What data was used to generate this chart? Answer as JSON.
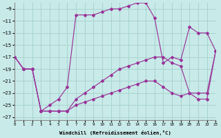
{
  "xlabel": "Windchill (Refroidissement éolien,°C)",
  "background_color": "#c8eae8",
  "grid_color": "#a8d4d0",
  "line_color": "#993399",
  "xlim": [
    0,
    23
  ],
  "ylim": [
    -27.5,
    -8
  ],
  "ytick_vals": [
    -27,
    -25,
    -23,
    -21,
    -19,
    -17,
    -15,
    -13,
    -11,
    -9
  ],
  "xtick_vals": [
    0,
    1,
    2,
    3,
    4,
    5,
    6,
    7,
    8,
    9,
    10,
    11,
    12,
    13,
    14,
    15,
    16,
    17,
    18,
    19,
    20,
    21,
    22,
    23
  ],
  "line1_x": [
    0,
    1,
    2,
    3,
    4,
    5,
    6,
    7,
    8,
    9,
    10,
    11,
    12,
    13,
    14,
    15,
    16,
    17,
    18,
    19,
    20,
    21,
    22,
    23
  ],
  "line1_y": [
    -17,
    -19,
    -19,
    -26,
    -25,
    -24,
    -22,
    -10,
    -10,
    -10,
    -9.5,
    -9,
    -9,
    -8.5,
    -8,
    -8,
    -10.5,
    -18,
    -17,
    -17.5,
    -12,
    -13,
    -13,
    -16
  ],
  "line2_x": [
    0,
    1,
    2,
    3,
    4,
    5,
    6,
    7,
    8,
    9,
    10,
    11,
    12,
    13,
    14,
    15,
    16,
    17,
    18,
    19,
    20,
    21,
    22,
    23
  ],
  "line2_y": [
    -17,
    -19,
    -19,
    -26,
    -26,
    -26,
    -26,
    -24,
    -23,
    -22,
    -21,
    -20,
    -19,
    -18.5,
    -18,
    -17.5,
    -17,
    -17,
    -18,
    -18.5,
    -23,
    -23,
    -23,
    -16
  ],
  "line3_x": [
    0,
    1,
    2,
    3,
    4,
    5,
    6,
    7,
    8,
    9,
    10,
    11,
    12,
    13,
    14,
    15,
    16,
    17,
    18,
    19,
    20,
    21,
    22,
    23
  ],
  "line3_y": [
    -17,
    -19,
    -19,
    -26,
    -26,
    -26,
    -26,
    -25,
    -24.5,
    -24,
    -23.5,
    -23,
    -22.5,
    -22,
    -21.5,
    -21,
    -21,
    -22,
    -23,
    -23.5,
    -23,
    -24,
    -24,
    -16
  ]
}
